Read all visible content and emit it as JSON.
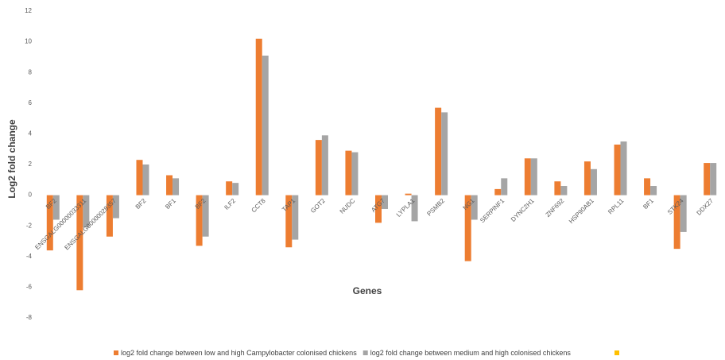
{
  "chart_data": {
    "type": "bar",
    "y_label": "Log2 fold change",
    "x_label": "Genes",
    "categories": [
      "BF2",
      "ENSGALG00000033311",
      "ENSGALG00000028357",
      "BF2",
      "BF1",
      "BF2",
      "ILF2",
      "CCT8",
      "TAP1",
      "GOT2",
      "NUDC",
      "ATG7",
      "LYPLA1",
      "PSMB2",
      "NG1",
      "SERPINF1",
      "DYNC2H1",
      "ZNF692",
      "HSP90AB1",
      "RPL11",
      "BF1",
      "STK24",
      "DDX27"
    ],
    "series": [
      {
        "name": "log2 fold change between low and high Campylobacter colonised chickens",
        "color": "#ed7d31",
        "values": [
          -3.6,
          -6.2,
          -2.7,
          2.3,
          1.3,
          -3.3,
          0.9,
          10.2,
          -3.4,
          3.6,
          2.9,
          -1.8,
          0.1,
          5.7,
          -4.3,
          0.4,
          2.4,
          0.9,
          2.2,
          3.3,
          1.1,
          -3.5,
          2.1
        ]
      },
      {
        "name": "log2 fold change between medium and high colonised chickens",
        "color": "#a5a5a5",
        "values": [
          -1.6,
          -2.1,
          -1.5,
          2.0,
          1.1,
          -2.7,
          0.8,
          9.1,
          -2.9,
          3.9,
          2.8,
          -0.9,
          -1.7,
          5.4,
          -1.6,
          1.1,
          2.4,
          0.6,
          1.7,
          3.5,
          0.6,
          -2.4,
          2.1
        ]
      }
    ],
    "ylim": [
      -8,
      12
    ],
    "yticks": [
      -8,
      -6,
      -4,
      -2,
      0,
      2,
      4,
      6,
      8,
      10,
      12
    ]
  }
}
